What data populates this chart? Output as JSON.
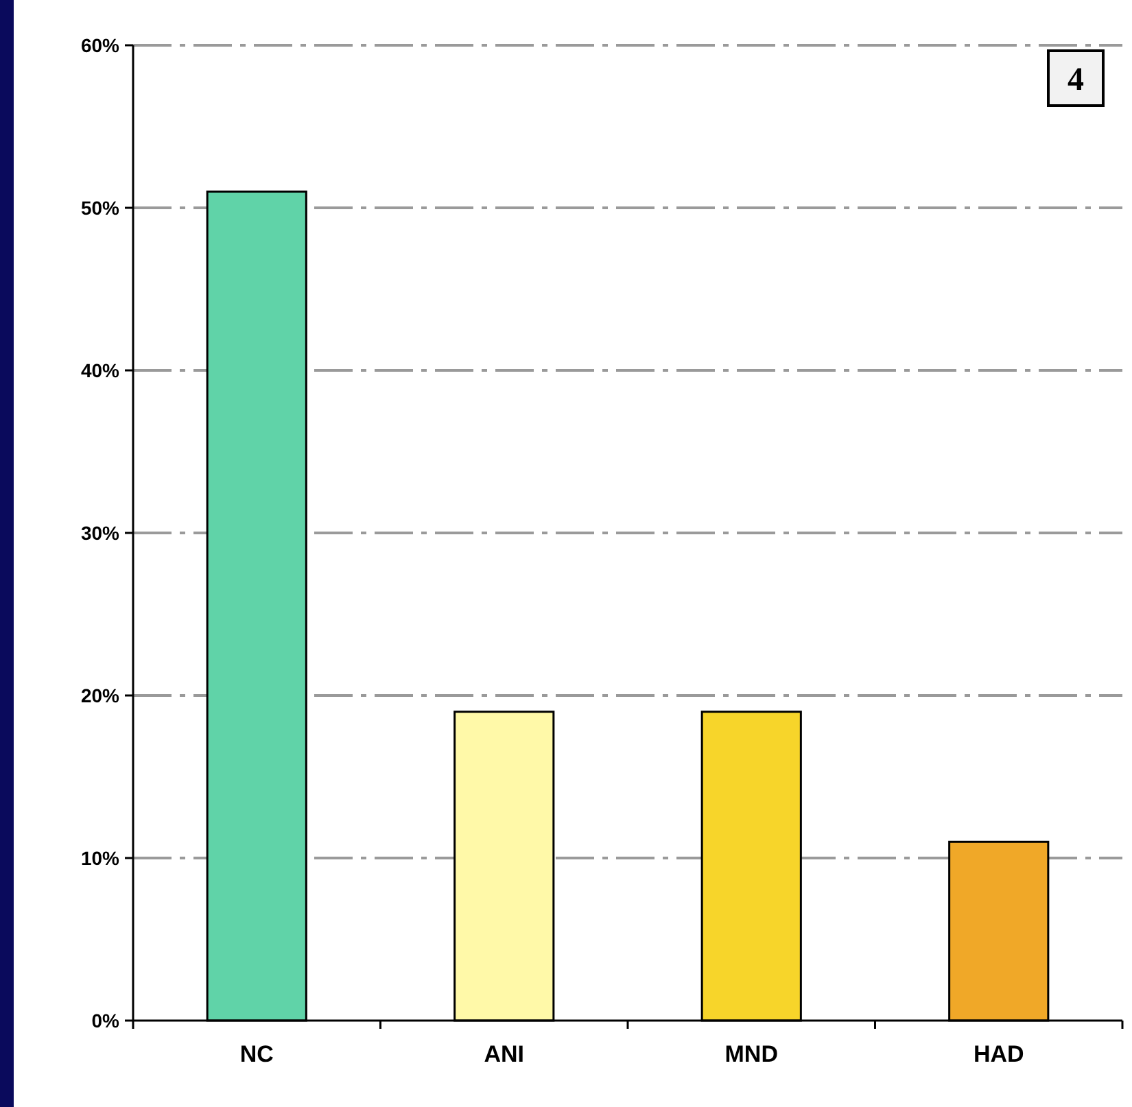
{
  "chart_data": {
    "type": "bar",
    "categories": [
      "NC",
      "ANI",
      "MND",
      "HAD"
    ],
    "values": [
      51,
      19,
      19,
      11
    ],
    "colors": [
      "#60d3a8",
      "#fff9a8",
      "#f7d52a",
      "#f0a828"
    ],
    "ylim": [
      0,
      60
    ],
    "yticks": [
      {
        "value": 0,
        "label": "0%"
      },
      {
        "value": 10,
        "label": "10%"
      },
      {
        "value": 20,
        "label": "20%"
      },
      {
        "value": 30,
        "label": "30%"
      },
      {
        "value": 40,
        "label": "40%"
      },
      {
        "value": 50,
        "label": "50%"
      },
      {
        "value": 60,
        "label": "60%"
      }
    ],
    "grid": "y",
    "annotations": [
      "4"
    ]
  }
}
